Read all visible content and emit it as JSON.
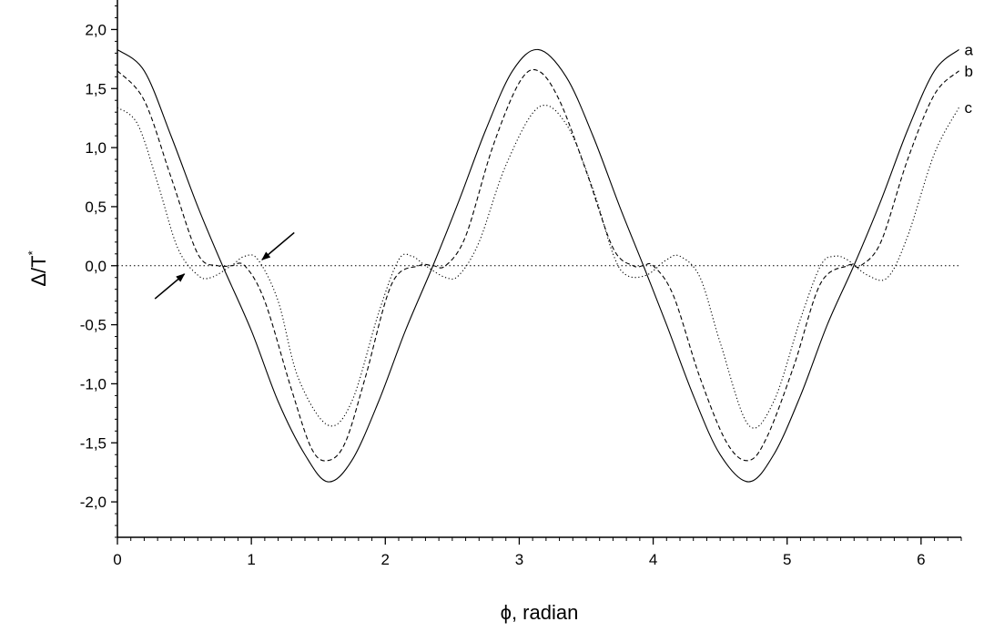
{
  "chart_data": {
    "type": "line",
    "xlabel": "ϕ, radian",
    "ylabel_main": "Δ/T",
    "ylabel_sup": "*",
    "xlim": [
      0,
      6.3
    ],
    "ylim": [
      -2.3,
      2.25
    ],
    "x_ticks": [
      0,
      1,
      2,
      3,
      4,
      5,
      6
    ],
    "x_tick_labels": [
      "0",
      "1",
      "2",
      "3",
      "4",
      "5",
      "6"
    ],
    "y_ticks": [
      2.0,
      1.5,
      1.0,
      0.5,
      0.0,
      -0.5,
      -1.0,
      -1.5,
      -2.0
    ],
    "y_tick_labels": [
      "2,0",
      "1,5",
      "1,0",
      "0,5",
      "0,0",
      "-0,5",
      "-1,0",
      "-1,5",
      "-2,0"
    ],
    "grid": false,
    "reference_line": {
      "y": 0,
      "style": "dotted"
    },
    "series": [
      {
        "name": "a",
        "style": "solid",
        "x": [
          0,
          0.2,
          0.4,
          0.6,
          0.785,
          1.0,
          1.2,
          1.4,
          1.571,
          1.75,
          1.95,
          2.15,
          2.356,
          2.55,
          2.75,
          2.95,
          3.142,
          3.35,
          3.55,
          3.75,
          3.927,
          4.1,
          4.3,
          4.5,
          4.712,
          4.9,
          5.1,
          5.3,
          5.498,
          5.7,
          5.9,
          6.1,
          6.283
        ],
        "y": [
          1.83,
          1.65,
          1.1,
          0.5,
          0.0,
          -0.55,
          -1.15,
          -1.6,
          -1.83,
          -1.65,
          -1.15,
          -0.55,
          0.0,
          0.55,
          1.15,
          1.65,
          1.83,
          1.6,
          1.1,
          0.5,
          0.0,
          -0.5,
          -1.1,
          -1.6,
          -1.83,
          -1.6,
          -1.1,
          -0.5,
          0.0,
          0.55,
          1.15,
          1.65,
          1.83
        ]
      },
      {
        "name": "b",
        "style": "dashed",
        "x": [
          0,
          0.2,
          0.4,
          0.6,
          0.75,
          0.85,
          0.95,
          1.1,
          1.3,
          1.45,
          1.571,
          1.7,
          1.85,
          2.05,
          2.25,
          2.356,
          2.45,
          2.6,
          2.8,
          3.0,
          3.142,
          3.3,
          3.5,
          3.7,
          3.85,
          3.927,
          4.0,
          4.15,
          4.35,
          4.55,
          4.712,
          4.85,
          5.05,
          5.25,
          5.45,
          5.498,
          5.55,
          5.7,
          5.9,
          6.1,
          6.283
        ],
        "y": [
          1.65,
          1.4,
          0.75,
          0.1,
          0.0,
          0.0,
          0.0,
          -0.3,
          -1.05,
          -1.55,
          -1.65,
          -1.5,
          -0.95,
          -0.15,
          0.0,
          0.0,
          0.0,
          0.25,
          1.0,
          1.55,
          1.65,
          1.4,
          0.8,
          0.15,
          0.0,
          0.0,
          0.0,
          -0.25,
          -0.95,
          -1.5,
          -1.65,
          -1.45,
          -0.85,
          -0.15,
          0.0,
          0.0,
          0.0,
          0.2,
          0.9,
          1.45,
          1.65
        ]
      },
      {
        "name": "c",
        "style": "dotted",
        "x": [
          0,
          0.15,
          0.3,
          0.45,
          0.6,
          0.7,
          0.85,
          0.95,
          1.05,
          1.2,
          1.35,
          1.571,
          1.75,
          1.95,
          2.1,
          2.2,
          2.3,
          2.45,
          2.55,
          2.7,
          2.9,
          3.142,
          3.35,
          3.55,
          3.7,
          3.8,
          3.95,
          4.1,
          4.2,
          4.35,
          4.5,
          4.712,
          4.9,
          5.1,
          5.25,
          5.35,
          5.45,
          5.6,
          5.75,
          5.9,
          6.1,
          6.283
        ],
        "y": [
          1.34,
          1.2,
          0.7,
          0.15,
          -0.08,
          -0.1,
          0.0,
          0.08,
          0.05,
          -0.3,
          -0.95,
          -1.35,
          -1.15,
          -0.4,
          0.05,
          0.08,
          0.0,
          -0.1,
          -0.08,
          0.2,
          0.85,
          1.34,
          1.2,
          0.65,
          0.1,
          -0.08,
          -0.08,
          0.05,
          0.08,
          -0.1,
          -0.65,
          -1.35,
          -1.15,
          -0.45,
          0.0,
          0.08,
          0.05,
          -0.08,
          -0.1,
          0.25,
          0.95,
          1.34
        ]
      }
    ],
    "annotations": [
      {
        "type": "arrow",
        "from": [
          0.28,
          -0.28
        ],
        "to": [
          0.5,
          -0.07
        ]
      },
      {
        "type": "arrow",
        "from": [
          1.32,
          0.28
        ],
        "to": [
          1.08,
          0.05
        ]
      }
    ]
  }
}
